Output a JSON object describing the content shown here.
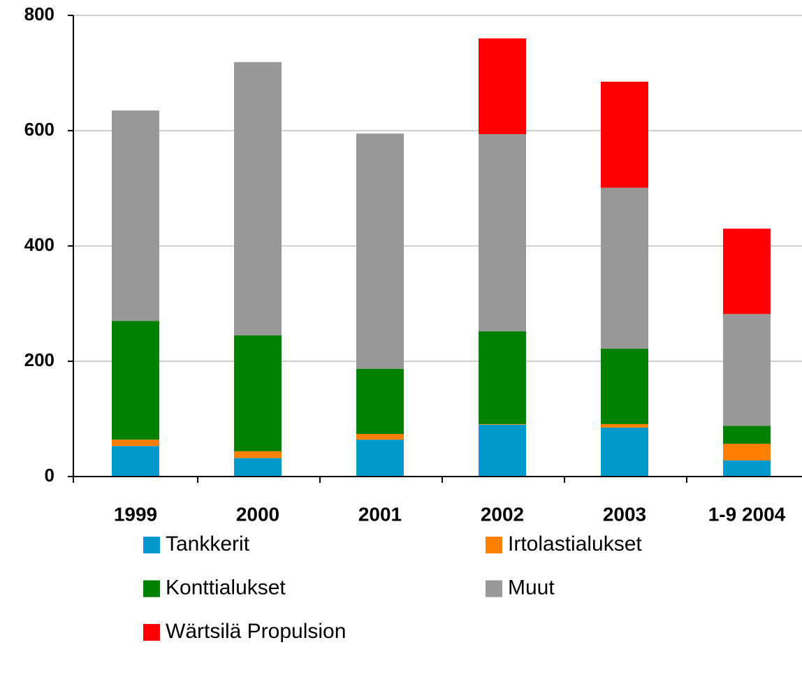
{
  "chart_data": {
    "type": "stacked_bar",
    "categories": [
      "1999",
      "2000",
      "2001",
      "2002",
      "2003",
      "1-9 2004"
    ],
    "series": [
      {
        "name": "Tankkerit",
        "color": "#0099cc",
        "values": [
          53,
          32,
          64,
          90,
          85,
          28
        ]
      },
      {
        "name": "Irtolastialukset",
        "color": "#ff7f00",
        "values": [
          11,
          12,
          10,
          1,
          6,
          29
        ]
      },
      {
        "name": "Konttialukset",
        "color": "#008000",
        "values": [
          206,
          201,
          113,
          161,
          131,
          31
        ]
      },
      {
        "name": "Muut",
        "color": "#999999",
        "values": [
          365,
          474,
          408,
          342,
          279,
          194
        ]
      },
      {
        "name": "Wärtsilä Propulsion",
        "color": "#ff0000",
        "values": [
          0,
          0,
          0,
          166,
          184,
          148
        ]
      }
    ],
    "ylim": [
      0,
      800
    ],
    "yticks": [
      0,
      200,
      400,
      600,
      800
    ],
    "grid": true
  }
}
